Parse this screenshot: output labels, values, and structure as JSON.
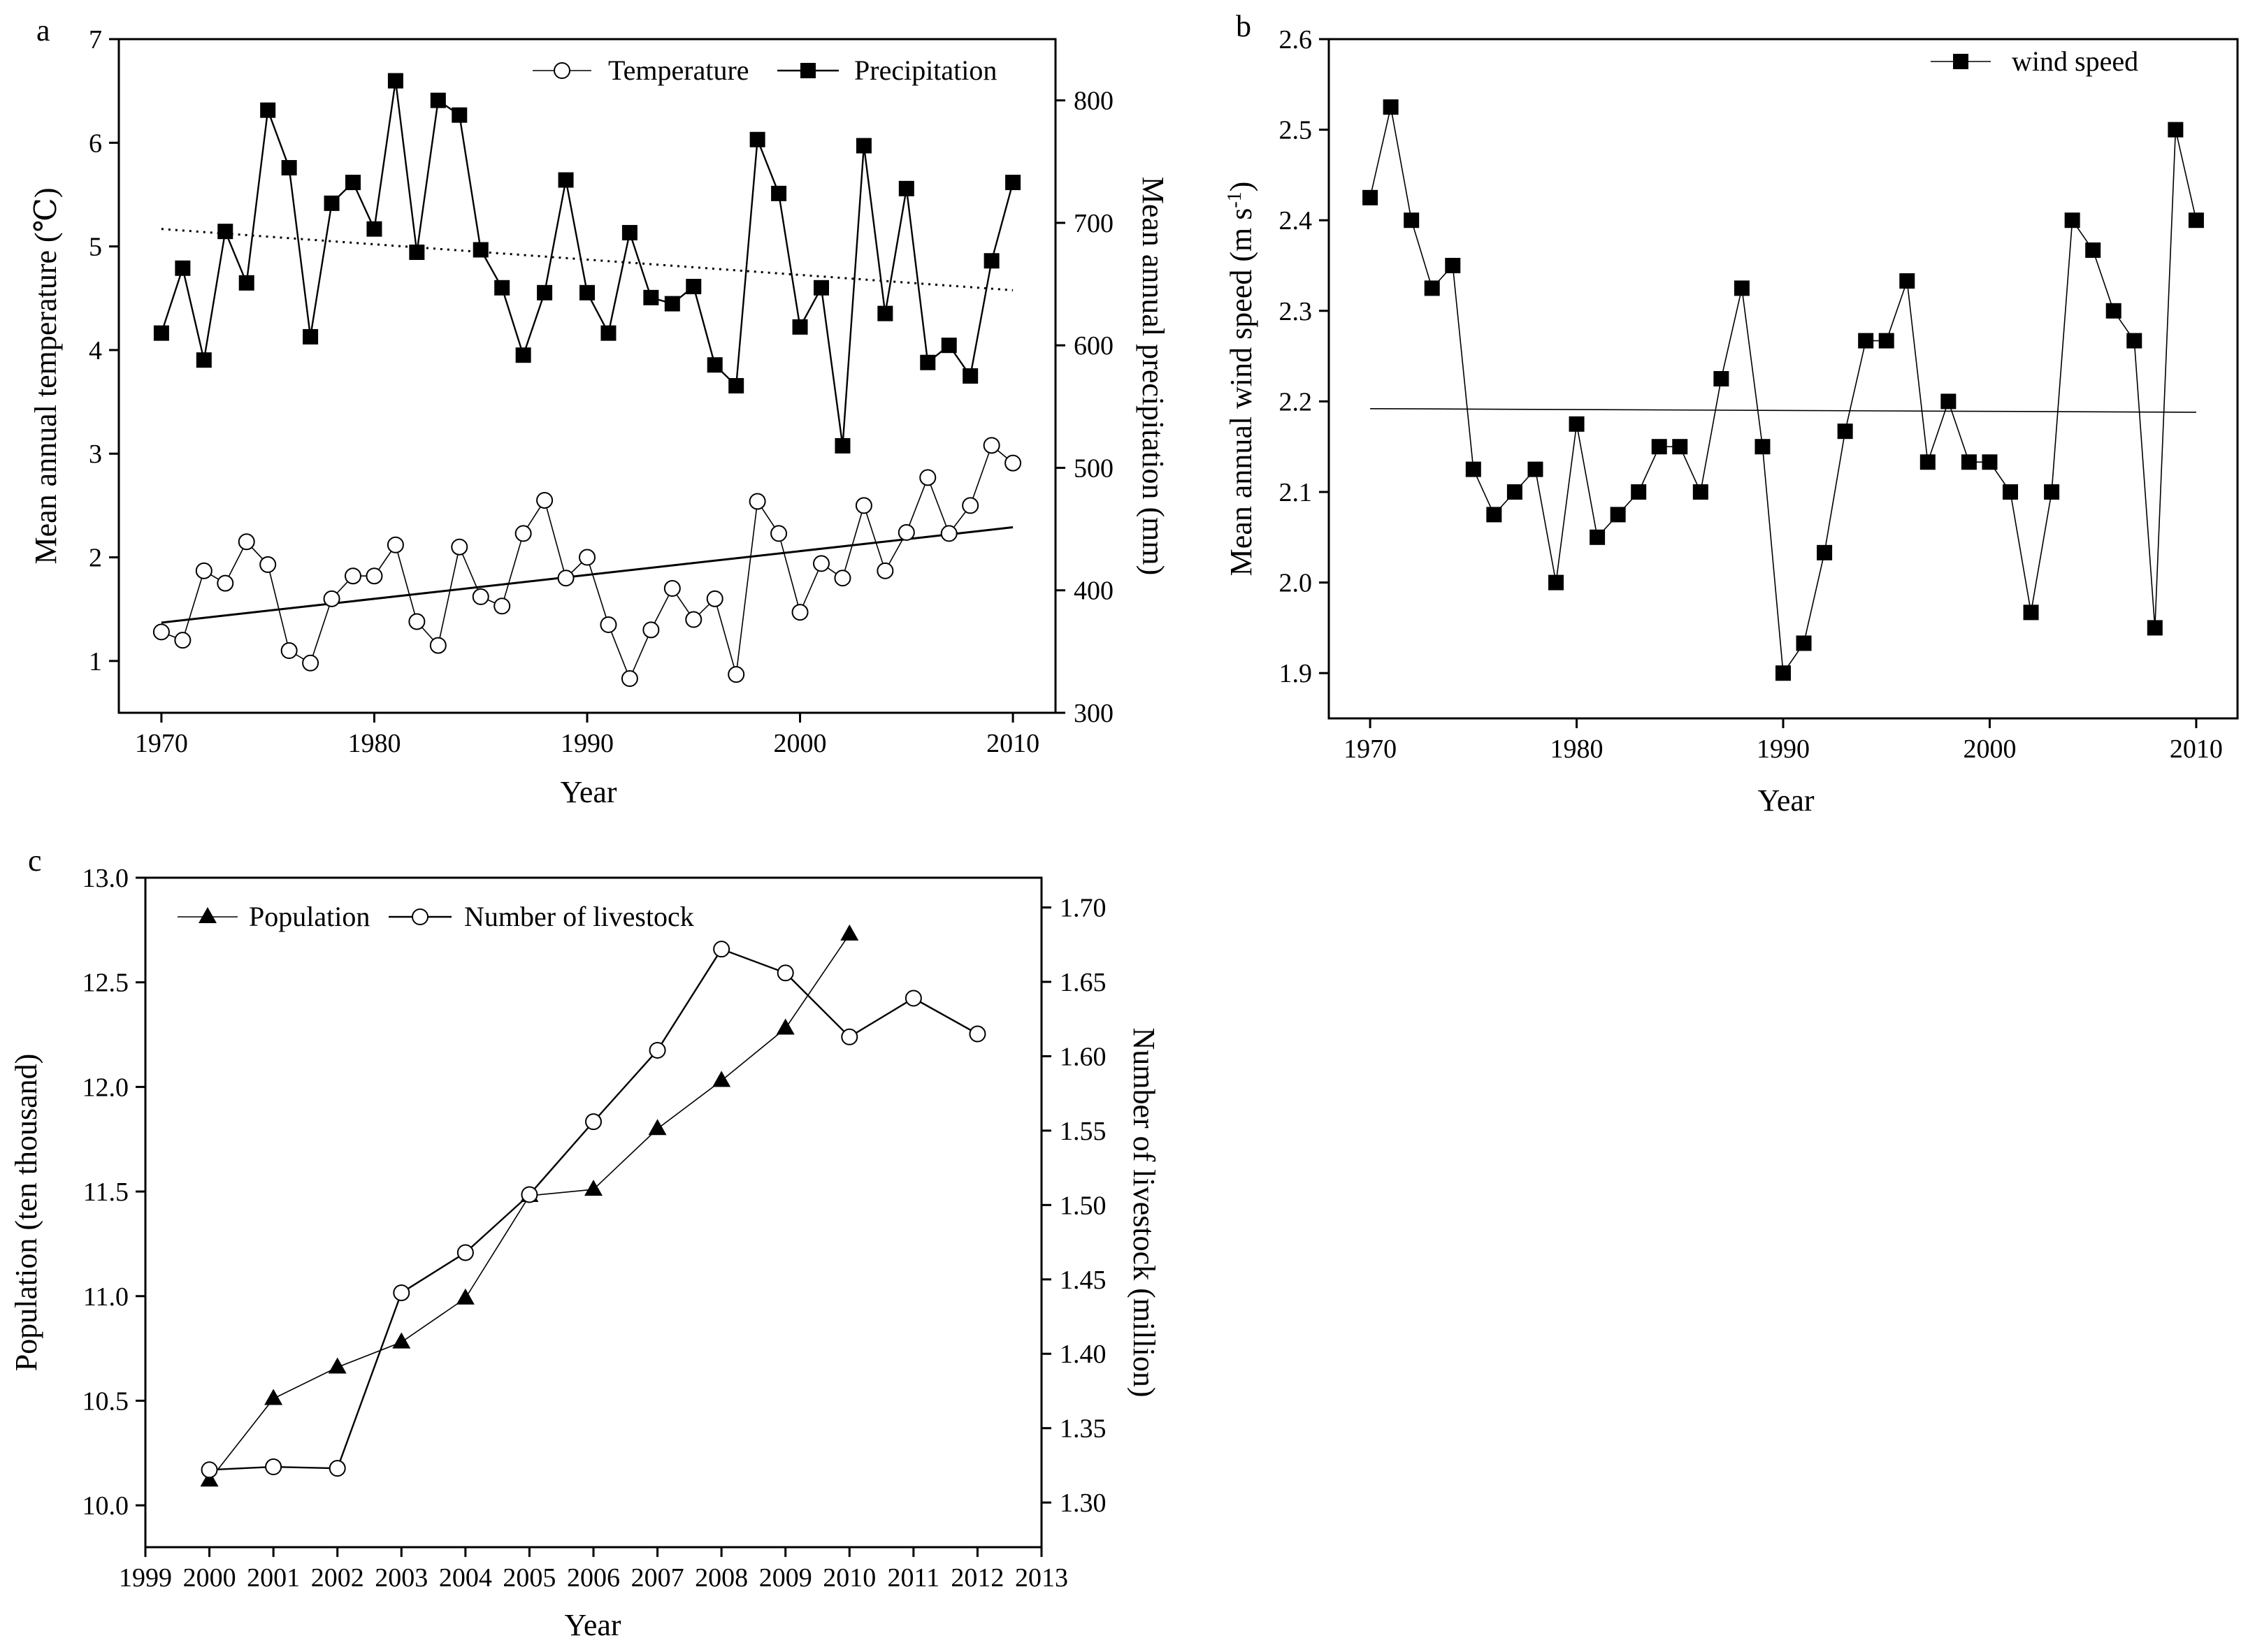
{
  "chart_data": [
    {
      "panel_label": "a",
      "type": "line",
      "xlabel": "Year",
      "ylabel": "Mean annual temperature (℃)",
      "y2label": "Mean annual precipitation (mm)",
      "xlim": [
        1968,
        2012
      ],
      "ylim": [
        0.5,
        7
      ],
      "y2lim": [
        300,
        850
      ],
      "xticks": [
        "1970",
        "1980",
        "1990",
        "2000",
        "2010"
      ],
      "yticks": [
        "1",
        "2",
        "3",
        "4",
        "5",
        "6",
        "7"
      ],
      "y2ticks": [
        "300",
        "400",
        "500",
        "600",
        "700",
        "800"
      ],
      "x": [
        1970,
        1971,
        1972,
        1973,
        1974,
        1975,
        1976,
        1977,
        1978,
        1979,
        1980,
        1981,
        1982,
        1983,
        1984,
        1985,
        1986,
        1987,
        1988,
        1989,
        1990,
        1991,
        1992,
        1993,
        1994,
        1995,
        1996,
        1997,
        1998,
        1999,
        2000,
        2001,
        2002,
        2003,
        2004,
        2005,
        2006,
        2007,
        2008,
        2009,
        2010
      ],
      "series": [
        {
          "name": "Temperature",
          "axis": "left",
          "marker": "open-circle",
          "values": [
            1.28,
            1.2,
            1.87,
            1.75,
            2.15,
            1.93,
            1.1,
            0.98,
            1.6,
            1.82,
            1.82,
            2.12,
            1.38,
            1.15,
            2.1,
            1.62,
            1.53,
            2.23,
            2.55,
            1.8,
            2.0,
            1.35,
            0.83,
            1.3,
            1.7,
            1.4,
            1.6,
            0.87,
            2.54,
            2.23,
            1.47,
            1.94,
            1.8,
            2.5,
            1.87,
            2.24,
            2.77,
            2.23,
            2.5,
            3.08,
            2.91
          ],
          "trend": [
            1.37,
            2.29
          ]
        },
        {
          "name": "Precipitation",
          "axis": "right",
          "marker": "filled-square",
          "values": [
            610,
            663,
            588,
            693,
            651,
            792,
            745,
            607,
            716,
            733,
            695,
            816,
            676,
            800,
            788,
            678,
            647,
            592,
            643,
            735,
            643,
            610,
            692,
            639,
            634,
            648,
            584,
            567,
            768,
            724,
            615,
            647,
            518,
            763,
            626,
            728,
            586,
            600,
            575,
            669,
            733
          ],
          "trend": [
            695,
            645
          ]
        }
      ]
    },
    {
      "panel_label": "b",
      "type": "line",
      "xlabel": "Year",
      "ylabel": "Mean annual wind speed (m s",
      "ylabel_sup": "-1",
      "ylabel_close": ")",
      "xlim": [
        1968,
        2012
      ],
      "ylim": [
        1.85,
        2.6
      ],
      "xticks": [
        "1970",
        "1980",
        "1990",
        "2000",
        "2010"
      ],
      "yticks": [
        "1.9",
        "2.0",
        "2.1",
        "2.2",
        "2.3",
        "2.4",
        "2.5",
        "2.6"
      ],
      "x": [
        1970,
        1971,
        1972,
        1973,
        1974,
        1975,
        1976,
        1977,
        1978,
        1979,
        1980,
        1981,
        1982,
        1983,
        1984,
        1985,
        1986,
        1987,
        1988,
        1989,
        1990,
        1991,
        1992,
        1993,
        1994,
        1995,
        1996,
        1997,
        1998,
        1999,
        2000,
        2001,
        2002,
        2003,
        2004,
        2005,
        2006,
        2007,
        2008,
        2009,
        2010
      ],
      "series": [
        {
          "name": "wind speed",
          "marker": "filled-square",
          "values": [
            2.425,
            2.525,
            2.4,
            2.325,
            2.35,
            2.125,
            2.075,
            2.1,
            2.125,
            2.0,
            2.175,
            2.05,
            2.075,
            2.1,
            2.15,
            2.15,
            2.1,
            2.225,
            2.325,
            2.15,
            1.9,
            1.933,
            2.033,
            2.167,
            2.267,
            2.267,
            2.333,
            2.133,
            2.2,
            2.133,
            2.133,
            2.1,
            1.967,
            2.1,
            2.4,
            2.367,
            2.3,
            2.267,
            1.95,
            2.5,
            2.4
          ],
          "trend": [
            2.192,
            2.188
          ]
        }
      ]
    },
    {
      "panel_label": "c",
      "type": "line",
      "xlabel": "Year",
      "ylabel": "Population (ten thousand)",
      "y2label": "Number of livestock (million)",
      "xlim": [
        1999,
        2013
      ],
      "ylim": [
        9.8,
        13.0
      ],
      "y2lim": [
        1.27,
        1.72
      ],
      "xticks": [
        "1999",
        "2000",
        "2001",
        "2002",
        "2003",
        "2004",
        "2005",
        "2006",
        "2007",
        "2008",
        "2009",
        "2010",
        "2011",
        "2012",
        "2013"
      ],
      "yticks": [
        "10.0",
        "10.5",
        "11.0",
        "11.5",
        "12.0",
        "12.5",
        "13.0"
      ],
      "y2ticks": [
        "1.30",
        "1.35",
        "1.40",
        "1.45",
        "1.50",
        "1.55",
        "1.60",
        "1.65",
        "1.70"
      ],
      "series": [
        {
          "name": "Population",
          "axis": "left",
          "marker": "filled-triangle",
          "x": [
            2000,
            2001,
            2002,
            2003,
            2004,
            2005,
            2006,
            2007,
            2008,
            2009,
            2010
          ],
          "values": [
            10.12,
            10.51,
            10.66,
            10.78,
            10.99,
            11.48,
            11.51,
            11.8,
            12.03,
            12.28,
            12.73
          ]
        },
        {
          "name": "Number of livestock",
          "axis": "right",
          "marker": "open-circle",
          "x": [
            2000,
            2001,
            2002,
            2003,
            2004,
            2005,
            2006,
            2007,
            2008,
            2009,
            2010,
            2011,
            2012
          ],
          "values": [
            1.322,
            1.324,
            1.323,
            1.441,
            1.468,
            1.507,
            1.556,
            1.604,
            1.672,
            1.656,
            1.613,
            1.639,
            1.615
          ]
        }
      ]
    }
  ]
}
